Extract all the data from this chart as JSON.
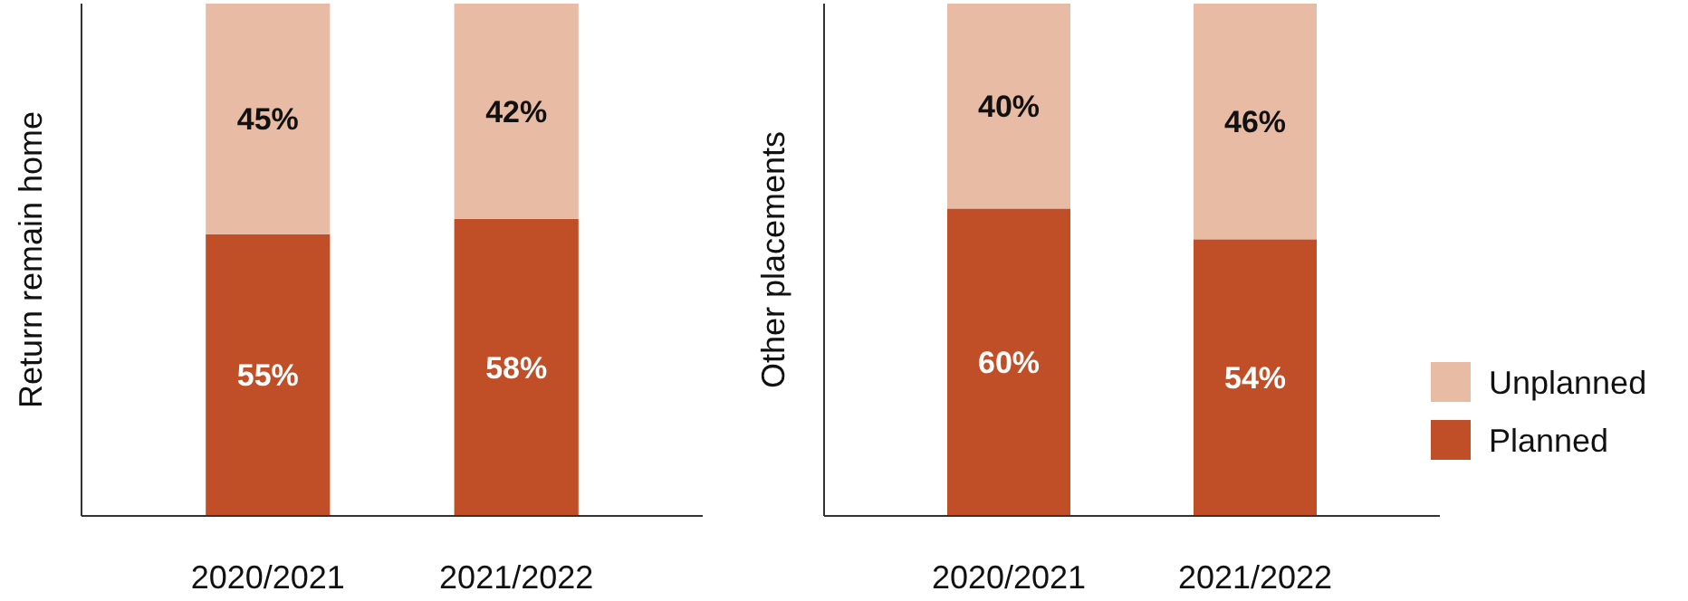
{
  "chart_data": [
    {
      "type": "bar",
      "ylabel": "Return remain home",
      "categories": [
        "2020/2021",
        "2021/2022"
      ],
      "stacked": true,
      "tick_labels": "x",
      "legend": "right",
      "series": [
        {
          "name": "Planned",
          "color": "#c04f28",
          "values": [
            55,
            58
          ],
          "value_labels": [
            "55%",
            "58%"
          ]
        },
        {
          "name": "Unplanned",
          "color": "#e8bba5",
          "values": [
            45,
            42
          ],
          "value_labels": [
            "45%",
            "42%"
          ]
        }
      ]
    },
    {
      "type": "bar",
      "ylabel": "Other placements",
      "categories": [
        "2020/2021",
        "2021/2022"
      ],
      "stacked": true,
      "tick_labels": "x",
      "series": [
        {
          "color": "#c04f28",
          "values": [
            60,
            54
          ],
          "value_labels": [
            "60%",
            "54%"
          ]
        },
        {
          "color": "#e8bba5",
          "values": [
            40,
            46
          ],
          "value_labels": [
            "40%",
            "46%"
          ]
        }
      ]
    }
  ]
}
